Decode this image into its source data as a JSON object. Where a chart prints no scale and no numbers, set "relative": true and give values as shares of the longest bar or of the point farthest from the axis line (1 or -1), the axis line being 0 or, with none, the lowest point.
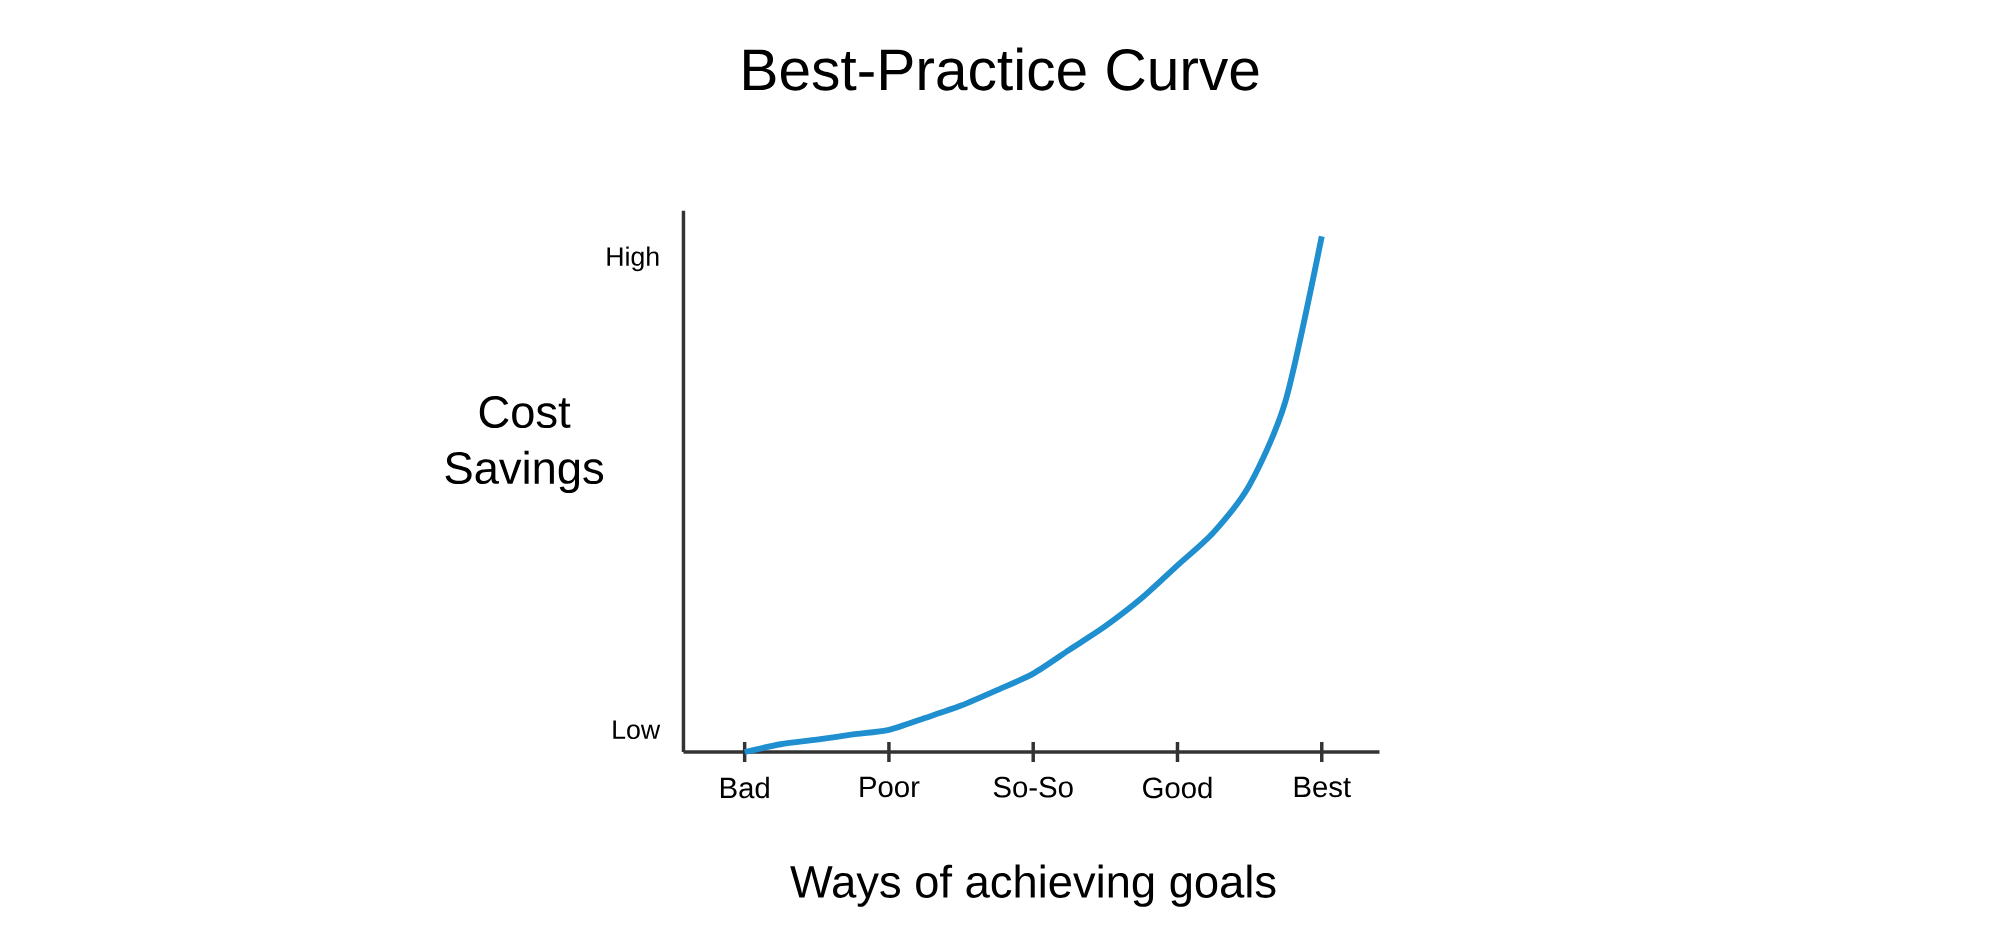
{
  "chart_data": {
    "type": "line",
    "title": "Best-Practice Curve",
    "xlabel": "Ways of achieving goals",
    "ylabel": "Cost Savings",
    "categories": [
      "Bad",
      null,
      null,
      null,
      "Poor",
      null,
      null,
      null,
      "So-So",
      null,
      null,
      null,
      "Good",
      null,
      null,
      null,
      "Best"
    ],
    "values": [
      0,
      0.015,
      0.024,
      0.034,
      0.043,
      0.066,
      0.09,
      0.12,
      0.152,
      0.198,
      0.244,
      0.298,
      0.362,
      0.426,
      0.518,
      0.682,
      1.0
    ],
    "relative": true,
    "color": "#1f8fcf",
    "annotations": [
      "Low",
      "High"
    ]
  }
}
